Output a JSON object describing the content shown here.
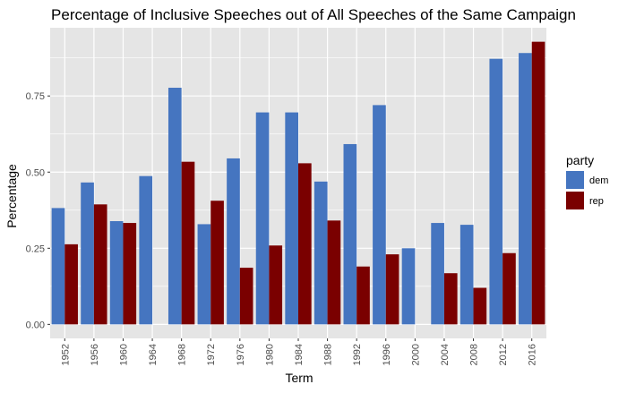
{
  "chart_data": {
    "type": "bar",
    "title": "Percentage of Inclusive Speeches out of All Speeches of the Same Campaign",
    "xlabel": "Term",
    "ylabel": "Percentage",
    "categories": [
      "1952",
      "1956",
      "1960",
      "1964",
      "1968",
      "1972",
      "1976",
      "1980",
      "1984",
      "1988",
      "1992",
      "1996",
      "2000",
      "2004",
      "2008",
      "2012",
      "2016"
    ],
    "series": [
      {
        "name": "dem",
        "color": "#4575c0",
        "values": [
          0.382,
          0.466,
          0.339,
          0.487,
          0.777,
          0.329,
          0.545,
          0.696,
          0.696,
          0.469,
          0.592,
          0.72,
          0.25,
          0.333,
          0.327,
          0.872,
          0.891
        ]
      },
      {
        "name": "rep",
        "color": "#7a0000",
        "values": [
          0.263,
          0.394,
          0.333,
          null,
          0.534,
          0.406,
          0.186,
          0.259,
          0.529,
          0.341,
          0.19,
          0.23,
          null,
          0.168,
          0.12,
          0.234,
          0.928
        ]
      }
    ],
    "yticks": [
      "0.00",
      "0.25",
      "0.50",
      "0.75"
    ],
    "ylim": [
      -0.046,
      0.974
    ],
    "legend": {
      "title": "party",
      "position": "right"
    },
    "grid": true,
    "panel_background": "#e5e5e5",
    "grid_color": "#ffffff"
  }
}
